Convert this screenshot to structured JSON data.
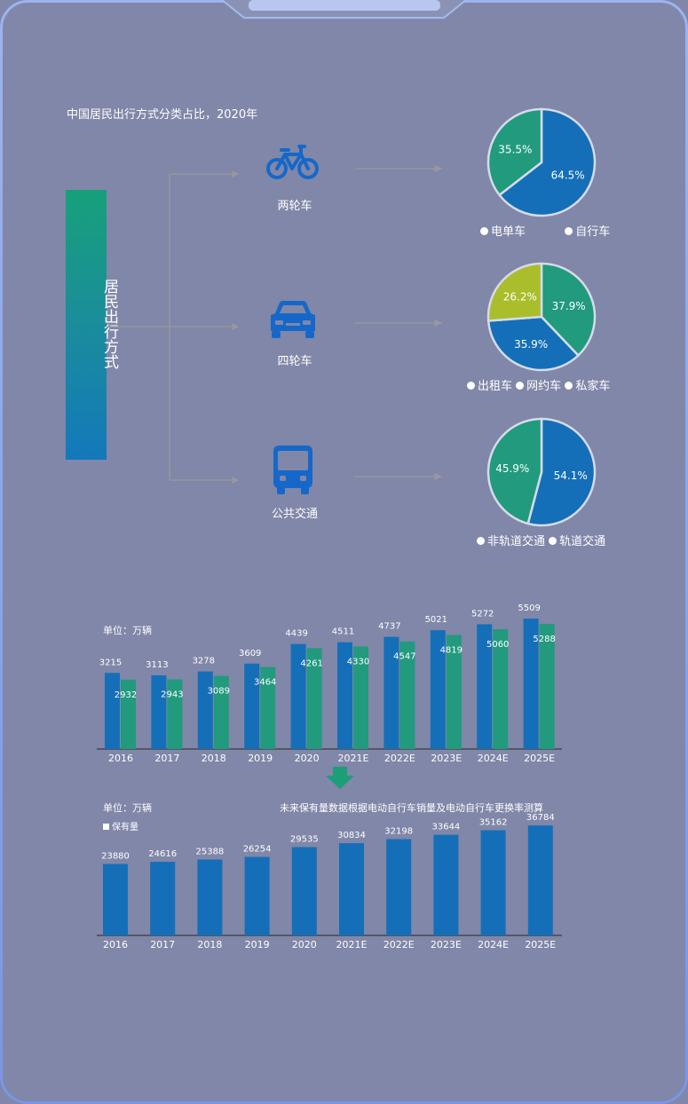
{
  "title": "中国居民出行方式分类占比，2020年",
  "root_label": "居民出行方式",
  "categories": [
    {
      "label": "两轮车",
      "icon": "bicycle-icon",
      "pie": [
        {
          "label": "电单车",
          "value": 35.5,
          "text": "35.5%",
          "color": "#219a7e"
        },
        {
          "label": "自行车",
          "value": 64.5,
          "text": "64.5%",
          "color": "#146fb8"
        }
      ]
    },
    {
      "label": "四轮车",
      "icon": "car-icon",
      "pie": [
        {
          "label": "出租车",
          "value": 26.2,
          "text": "26.2%",
          "color": "#a9be2a"
        },
        {
          "label": "网约车",
          "value": 35.9,
          "text": "35.9%",
          "color": "#146fb8"
        },
        {
          "label": "私家车",
          "value": 37.9,
          "text": "37.9%",
          "color": "#219a7e"
        }
      ]
    },
    {
      "label": "公共交通",
      "icon": "bus-icon",
      "pie": [
        {
          "label": "非轨道交通",
          "value": 45.9,
          "text": "45.9%",
          "color": "#219a7e"
        },
        {
          "label": "轨道交通",
          "value": 54.1,
          "text": "54.1%",
          "color": "#146fb8"
        }
      ]
    }
  ],
  "legends": [
    [
      "电单车",
      "自行车"
    ],
    [
      "出租车",
      "网约车",
      "私家车"
    ],
    [
      "非轨道交通",
      "轨道交通"
    ]
  ],
  "bar1": {
    "unit": "单位：万辆"
  },
  "bar2": {
    "unit": "单位：万辆",
    "note": "未来保有量数据根据电动自行车销量及电动自行车更换率测算",
    "legend": "保有量"
  },
  "colors": {
    "blue": "#146fb8",
    "green": "#219a7e",
    "yellow": "#a9be2a",
    "arrow": "#1c9e77"
  },
  "chart_data": [
    {
      "type": "pie",
      "categories": [
        "电单车",
        "自行车"
      ],
      "values": [
        35.5,
        64.5
      ]
    },
    {
      "type": "pie",
      "categories": [
        "出租车",
        "网约车",
        "私家车"
      ],
      "values": [
        26.2,
        35.9,
        37.9
      ]
    },
    {
      "type": "pie",
      "categories": [
        "非轨道交通",
        "轨道交通"
      ],
      "values": [
        45.9,
        54.1
      ]
    },
    {
      "type": "bar",
      "categories": [
        "2016",
        "2017",
        "2018",
        "2019",
        "2020",
        "2021E",
        "2022E",
        "2023E",
        "2024E",
        "2025E"
      ],
      "series": [
        {
          "values": [
            3215,
            3113,
            3278,
            3609,
            4439,
            4511,
            4737,
            5021,
            5272,
            5509
          ],
          "color": "#146fb8"
        },
        {
          "values": [
            2932,
            2943,
            3089,
            3464,
            4261,
            4330,
            4547,
            4819,
            5060,
            5288
          ],
          "color": "#219a7e"
        }
      ],
      "ylabel": "单位：万辆",
      "ylim": [
        0,
        5700
      ]
    },
    {
      "type": "bar",
      "categories": [
        "2016",
        "2017",
        "2018",
        "2019",
        "2020",
        "2021E",
        "2022E",
        "2023E",
        "2024E",
        "2025E"
      ],
      "series": [
        {
          "name": "保有量",
          "values": [
            23880,
            24616,
            25388,
            26254,
            29535,
            30834,
            32198,
            33644,
            35162,
            36784
          ],
          "color": "#146fb8"
        }
      ],
      "ylabel": "单位：万辆",
      "ylim": [
        0,
        38000
      ]
    }
  ]
}
